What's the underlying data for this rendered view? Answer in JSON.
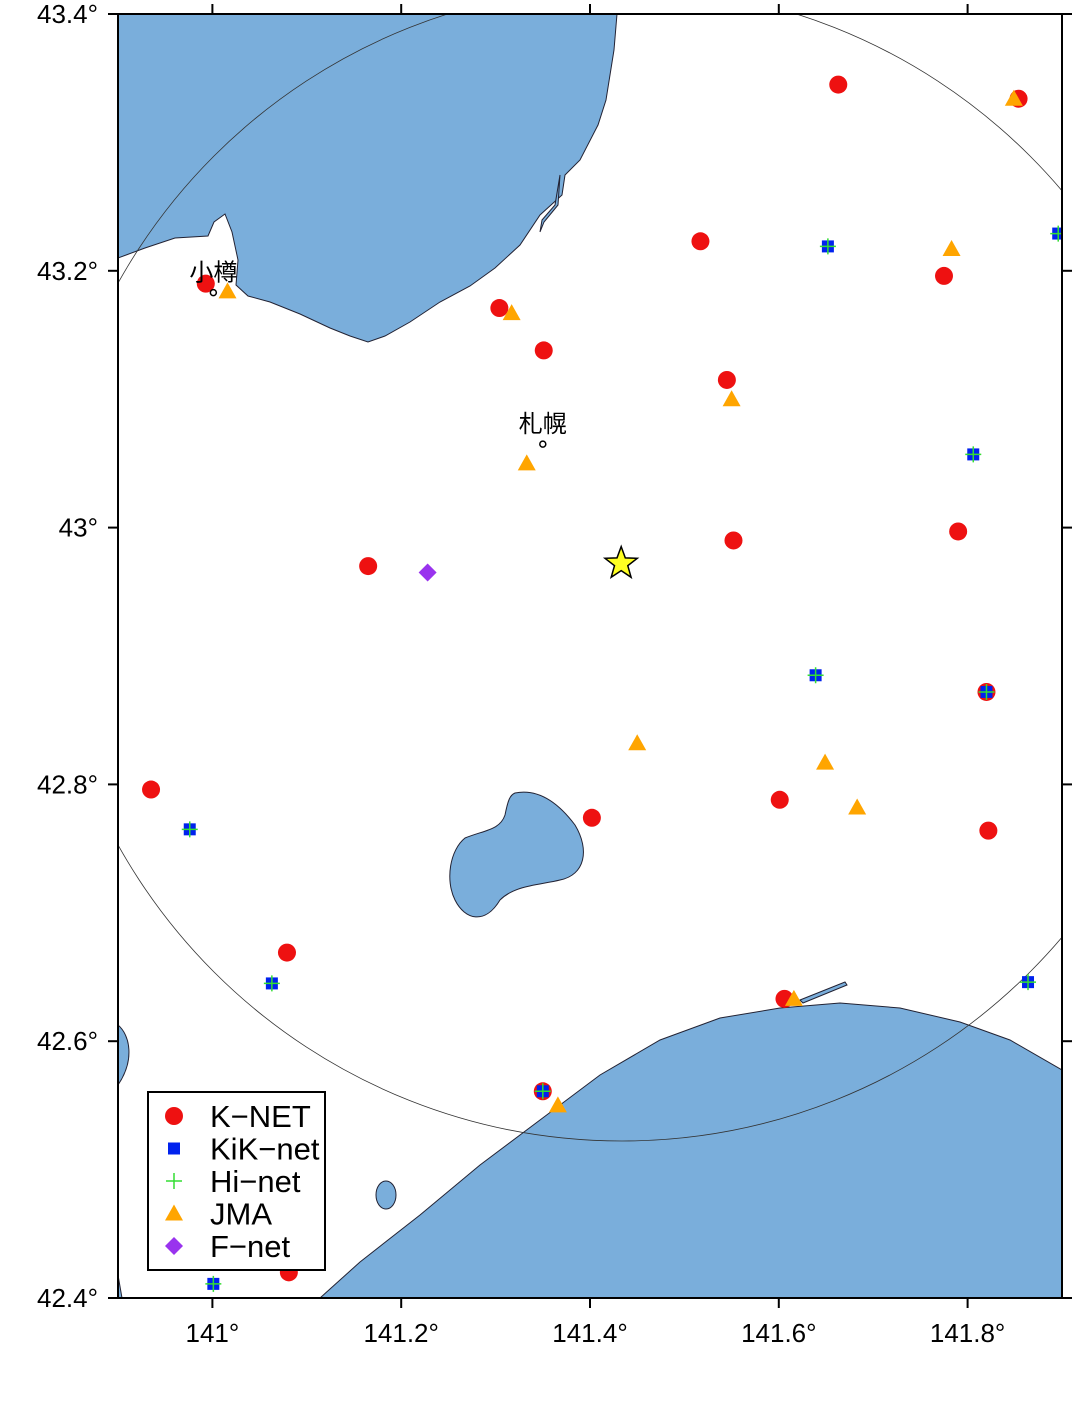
{
  "chart_data": {
    "type": "scatter",
    "xlim": [
      140.9,
      141.9
    ],
    "ylim": [
      42.4,
      43.4
    ],
    "xticks": [
      {
        "value": 141,
        "label": "141°"
      },
      {
        "value": 141.2,
        "label": "141.2°"
      },
      {
        "value": 141.4,
        "label": "141.4°"
      },
      {
        "value": 141.6,
        "label": "141.6°"
      },
      {
        "value": 141.8,
        "label": "141.8°"
      }
    ],
    "yticks": [
      {
        "value": 42.4,
        "label": "42.4°"
      },
      {
        "value": 42.6,
        "label": "42.6°"
      },
      {
        "value": 42.8,
        "label": "42.8°"
      },
      {
        "value": 43,
        "label": "43°"
      },
      {
        "value": 43.2,
        "label": "43.2°"
      },
      {
        "value": 43.4,
        "label": "43.4°"
      }
    ],
    "legend": "bottom-left",
    "series": [
      {
        "name": "K−NET",
        "color": "#ee1111",
        "marker": "circle",
        "x": [
          141.663,
          141.854,
          141.517,
          141.775,
          140.993,
          141.304,
          141.351,
          141.545,
          141.552,
          141.79,
          141.165,
          141.82,
          140.935,
          141.601,
          141.402,
          141.822,
          141.079,
          141.606,
          141.35,
          141.081
        ],
        "values": [
          43.345,
          43.334,
          43.223,
          43.196,
          43.19,
          43.171,
          43.138,
          43.115,
          42.99,
          42.997,
          42.97,
          42.872,
          42.796,
          42.788,
          42.774,
          42.764,
          42.669,
          42.633,
          42.561,
          42.42
        ]
      },
      {
        "name": "KiK−net",
        "color": "#0022ee",
        "marker": "square",
        "x": [
          141.652,
          141.896,
          141.806,
          141.639,
          141.82,
          140.976,
          141.063,
          141.864,
          141.35,
          141.001
        ],
        "values": [
          43.219,
          43.229,
          43.057,
          42.885,
          42.872,
          42.765,
          42.645,
          42.646,
          42.561,
          42.411
        ]
      },
      {
        "name": "Hi−net",
        "color": "#33dd33",
        "marker": "plus",
        "x": [
          141.652,
          141.896,
          141.806,
          141.639,
          141.82,
          140.976,
          141.063,
          141.864,
          141.35,
          141.001
        ],
        "values": [
          43.219,
          43.229,
          43.057,
          42.885,
          42.872,
          42.765,
          42.645,
          42.646,
          42.561,
          42.411
        ]
      },
      {
        "name": "JMA",
        "color": "#ffa500",
        "marker": "triangle",
        "x": [
          141.849,
          141.783,
          141.016,
          141.317,
          141.55,
          141.333,
          141.45,
          141.649,
          141.683,
          141.616,
          141.366
        ],
        "values": [
          43.334,
          43.217,
          43.184,
          43.167,
          43.1,
          43.05,
          42.832,
          42.817,
          42.782,
          42.633,
          42.55
        ]
      },
      {
        "name": "F−net",
        "color": "#9933ee",
        "marker": "diamond",
        "x": [
          141.228
        ],
        "values": [
          42.965
        ]
      }
    ],
    "epicenter": {
      "x": 141.433,
      "y": 42.972,
      "color": "#ffff22"
    },
    "annotations": [
      {
        "text": "小樽",
        "x": 141.001,
        "y": 43.183
      },
      {
        "text": "札幌",
        "x": 141.35,
        "y": 43.065
      }
    ]
  }
}
